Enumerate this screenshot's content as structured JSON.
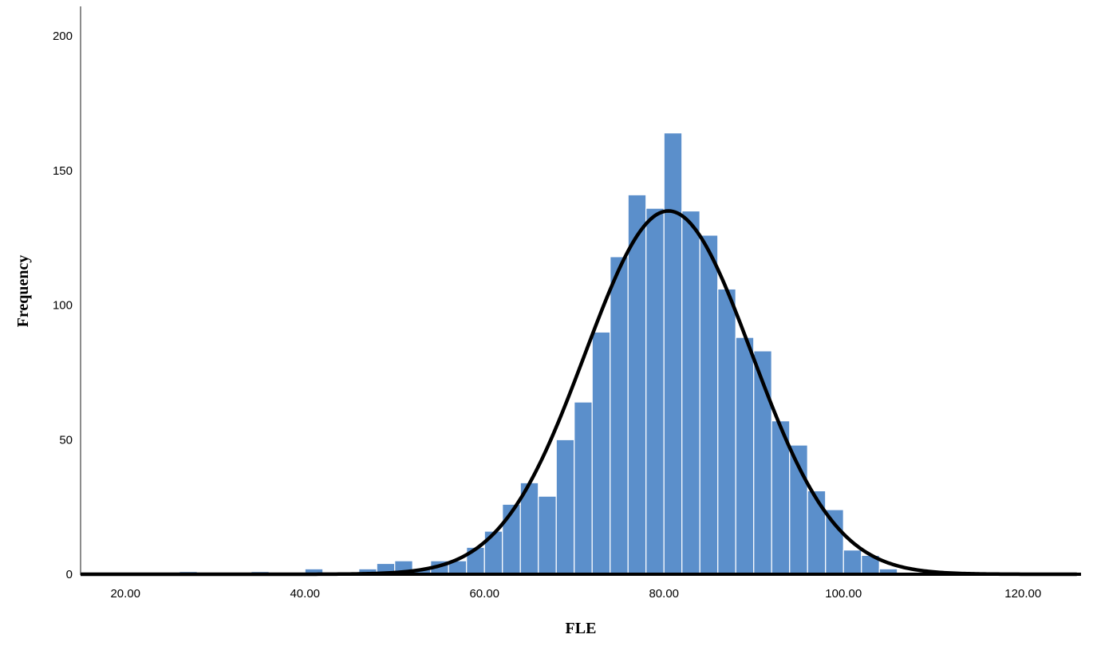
{
  "chart_data": {
    "type": "bar",
    "subtype": "histogram",
    "xlabel": "FLE",
    "ylabel": "Frequency",
    "xlim": [
      15,
      126
    ],
    "ylim": [
      0,
      210
    ],
    "x_ticks": [
      {
        "value": 20,
        "label": "20.00"
      },
      {
        "value": 40,
        "label": "40.00"
      },
      {
        "value": 60,
        "label": "60.00"
      },
      {
        "value": 80,
        "label": "80.00"
      },
      {
        "value": 100,
        "label": "100.00"
      },
      {
        "value": 120,
        "label": "120.00"
      }
    ],
    "y_ticks": [
      {
        "value": 0,
        "label": "0"
      },
      {
        "value": 50,
        "label": "50"
      },
      {
        "value": 100,
        "label": "100"
      },
      {
        "value": 150,
        "label": "150"
      },
      {
        "value": 200,
        "label": "200"
      }
    ],
    "bin_width": 2,
    "bins": [
      {
        "x0": 26,
        "count": 1
      },
      {
        "x0": 34,
        "count": 1
      },
      {
        "x0": 40,
        "count": 2
      },
      {
        "x0": 46,
        "count": 2
      },
      {
        "x0": 48,
        "count": 4
      },
      {
        "x0": 50,
        "count": 5
      },
      {
        "x0": 52,
        "count": 2
      },
      {
        "x0": 54,
        "count": 5
      },
      {
        "x0": 56,
        "count": 5
      },
      {
        "x0": 58,
        "count": 10
      },
      {
        "x0": 60,
        "count": 16
      },
      {
        "x0": 62,
        "count": 26
      },
      {
        "x0": 64,
        "count": 34
      },
      {
        "x0": 66,
        "count": 29
      },
      {
        "x0": 68,
        "count": 50
      },
      {
        "x0": 70,
        "count": 64
      },
      {
        "x0": 72,
        "count": 90
      },
      {
        "x0": 74,
        "count": 118
      },
      {
        "x0": 76,
        "count": 141
      },
      {
        "x0": 78,
        "count": 136
      },
      {
        "x0": 80,
        "count": 164
      },
      {
        "x0": 82,
        "count": 135
      },
      {
        "x0": 84,
        "count": 126
      },
      {
        "x0": 86,
        "count": 106
      },
      {
        "x0": 88,
        "count": 88
      },
      {
        "x0": 90,
        "count": 83
      },
      {
        "x0": 92,
        "count": 57
      },
      {
        "x0": 94,
        "count": 48
      },
      {
        "x0": 96,
        "count": 31
      },
      {
        "x0": 98,
        "count": 24
      },
      {
        "x0": 100,
        "count": 9
      },
      {
        "x0": 102,
        "count": 7
      },
      {
        "x0": 104,
        "count": 2
      }
    ],
    "normal_curve": {
      "mean": 80.5,
      "sd": 9.3,
      "peak": 135
    },
    "colors": {
      "bar": "#5b8fcb",
      "bar_edge": "#ffffff",
      "curve": "#000000",
      "axis": "#000000"
    },
    "grid": false,
    "legend": "none"
  }
}
